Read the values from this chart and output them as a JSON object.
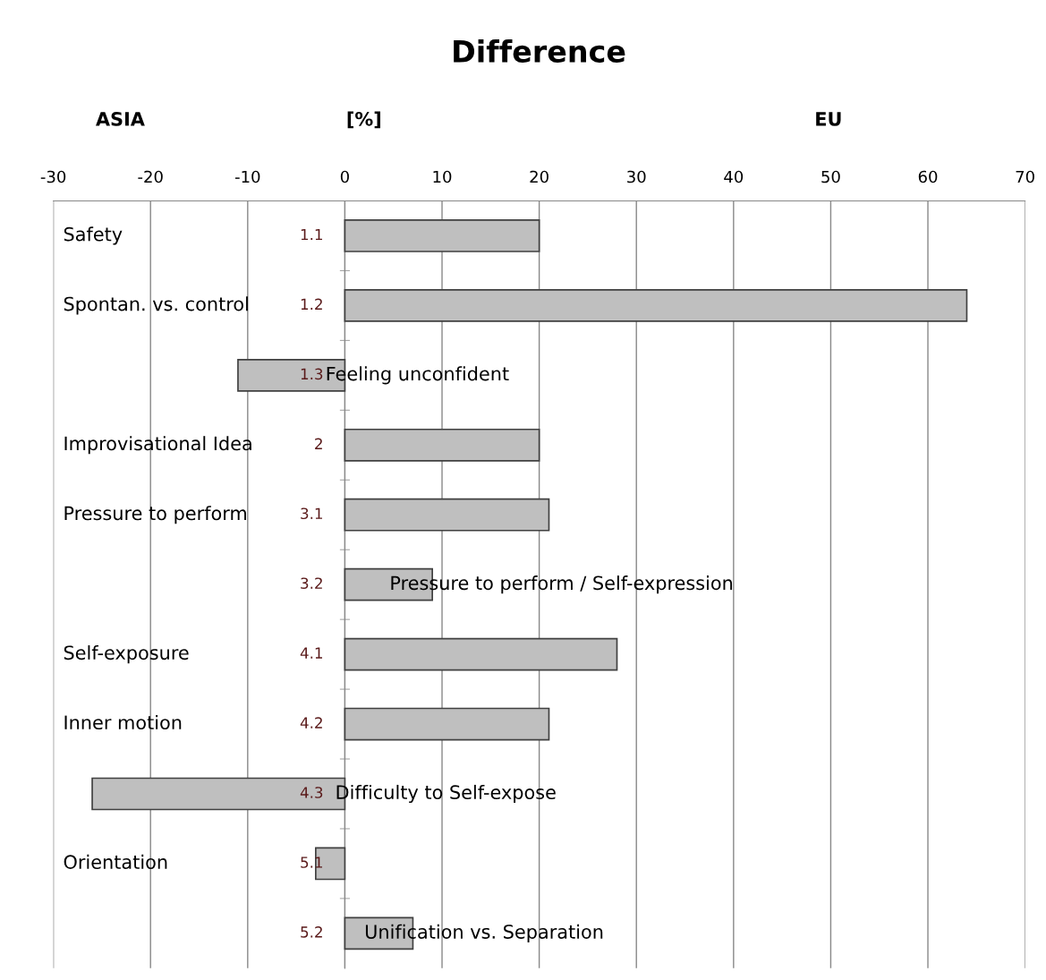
{
  "chart_data": {
    "type": "bar",
    "orientation": "horizontal",
    "title": "Difference",
    "categories": [
      "1.1",
      "1.2",
      "1.3",
      "2",
      "3.1",
      "3.2",
      "4.1",
      "4.2",
      "4.3",
      "5.1",
      "5.2"
    ],
    "values": [
      20,
      64,
      -11,
      20,
      21,
      9,
      28,
      21,
      -26,
      -3,
      7
    ],
    "color": "#bfbfbf",
    "xlim": [
      -30,
      70
    ],
    "xticks": [
      -30,
      -20,
      -10,
      0,
      10,
      20,
      30,
      40,
      50,
      60,
      70
    ],
    "grid": "x",
    "annotations": [
      "ASIA",
      "[%]",
      "EU",
      "Safety",
      "Spontan. vs. control",
      "Feeling unconfident",
      "Improvisational Idea",
      "Pressure to perform",
      "Pressure to perform / Self-expression",
      "Self-exposure",
      "Inner motion",
      "Difficulty to Self-expose",
      "Orientation",
      "Unification vs. Separation"
    ]
  }
}
